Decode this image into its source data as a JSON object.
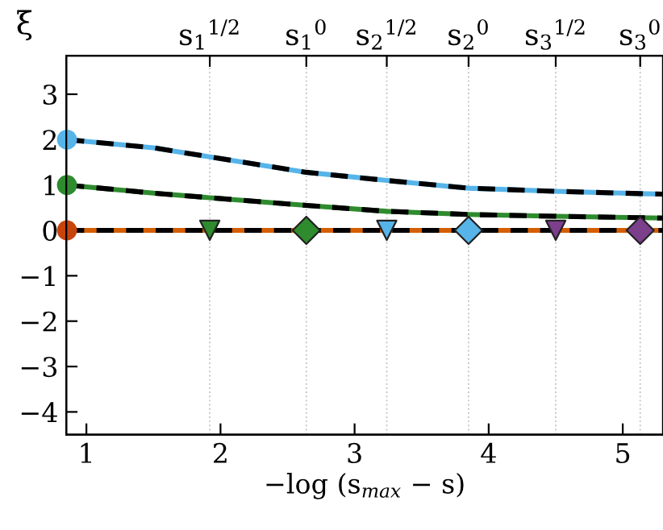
{
  "chart_data": {
    "type": "line",
    "xlabel": "−log (s$_{max}$ − s)",
    "ylabel": "ξ",
    "xlim": [
      0.85,
      5.3
    ],
    "ylim": [
      -4.5,
      3.85
    ],
    "xticks": [
      1,
      2,
      3,
      4,
      5
    ],
    "yticks": [
      {
        "value": -4,
        "label": "−4"
      },
      {
        "value": -3,
        "label": "−3"
      },
      {
        "value": -2,
        "label": "−2"
      },
      {
        "value": -1,
        "label": "−1"
      },
      0,
      1,
      2,
      3
    ],
    "ref_lines": [
      {
        "axis": "x",
        "value": 1.92,
        "label": "s$_{1}$$^{1/2}$",
        "color": "#c8c8c8",
        "line_style": "dotted"
      },
      {
        "axis": "x",
        "value": 2.64,
        "label": "s$_{1}$$^{0}$",
        "color": "#c8c8c8",
        "line_style": "dotted"
      },
      {
        "axis": "x",
        "value": 3.24,
        "label": "s$_{2}$$^{1/2}$",
        "color": "#c8c8c8",
        "line_style": "dotted"
      },
      {
        "axis": "x",
        "value": 3.85,
        "label": "s$_{2}$$^{0}$",
        "color": "#c8c8c8",
        "line_style": "dotted"
      },
      {
        "axis": "x",
        "value": 4.5,
        "label": "s$_{3}$$^{1/2}$",
        "color": "#c8c8c8",
        "line_style": "dotted"
      },
      {
        "axis": "x",
        "value": 5.13,
        "label": "s$_{3}$$^{0}$",
        "color": "#c8c8c8",
        "line_style": "dotted"
      }
    ],
    "grid": false,
    "legend": false,
    "series": [
      {
        "color": "#56b4e9",
        "line_style": "solid",
        "marker": "none",
        "x": [
          0.855,
          1.5,
          1.92,
          2.64,
          3.24,
          3.85,
          4.5,
          5.13,
          5.3
        ],
        "values": [
          2.0,
          1.82,
          1.62,
          1.28,
          1.1,
          0.93,
          0.86,
          0.81,
          0.8
        ]
      },
      {
        "color": "#000000",
        "line_style": "dashed",
        "marker": "none",
        "x": [
          0.855,
          1.5,
          1.92,
          2.64,
          3.24,
          3.85,
          4.5,
          5.13,
          5.3
        ],
        "values": [
          2.0,
          1.82,
          1.62,
          1.28,
          1.1,
          0.93,
          0.86,
          0.81,
          0.8
        ]
      },
      {
        "color": "#2e8b2e",
        "line_style": "solid",
        "marker": "none",
        "x": [
          0.855,
          1.5,
          1.92,
          2.64,
          3.24,
          3.85,
          4.5,
          5.13,
          5.3
        ],
        "values": [
          1.0,
          0.82,
          0.72,
          0.55,
          0.42,
          0.35,
          0.31,
          0.28,
          0.27
        ]
      },
      {
        "color": "#000000",
        "line_style": "dashed",
        "marker": "none",
        "x": [
          0.855,
          1.5,
          1.92,
          2.64,
          3.24,
          3.85,
          4.5,
          5.13,
          5.3
        ],
        "values": [
          1.0,
          0.82,
          0.72,
          0.55,
          0.42,
          0.35,
          0.31,
          0.28,
          0.27
        ]
      },
      {
        "color": "#d55e00",
        "line_style": "solid",
        "marker": "none",
        "x": [
          0.855,
          5.3
        ],
        "values": [
          0,
          0
        ]
      },
      {
        "color": "#000000",
        "line_style": "dashed",
        "marker": "none",
        "x": [
          0.855,
          5.3
        ],
        "values": [
          0,
          0
        ]
      },
      {
        "type": "scatter",
        "marker": "circle",
        "x": [
          0.855,
          0.855,
          0.855
        ],
        "values": [
          2,
          1,
          0
        ],
        "colors": [
          "#56b4e9",
          "#2e8b2e",
          "#c8440a"
        ]
      },
      {
        "type": "scatter",
        "marker": "triangle",
        "x": [
          1.92,
          3.24,
          4.5
        ],
        "values": [
          0,
          0,
          0
        ],
        "colors": [
          "#2e8b2e",
          "#56b4e9",
          "#7b3f8c"
        ]
      },
      {
        "type": "scatter",
        "marker": "diamond",
        "x": [
          2.64,
          3.85,
          5.13
        ],
        "values": [
          0,
          0,
          0
        ],
        "colors": [
          "#2e8b2e",
          "#56b4e9",
          "#7b3f8c"
        ]
      }
    ]
  }
}
